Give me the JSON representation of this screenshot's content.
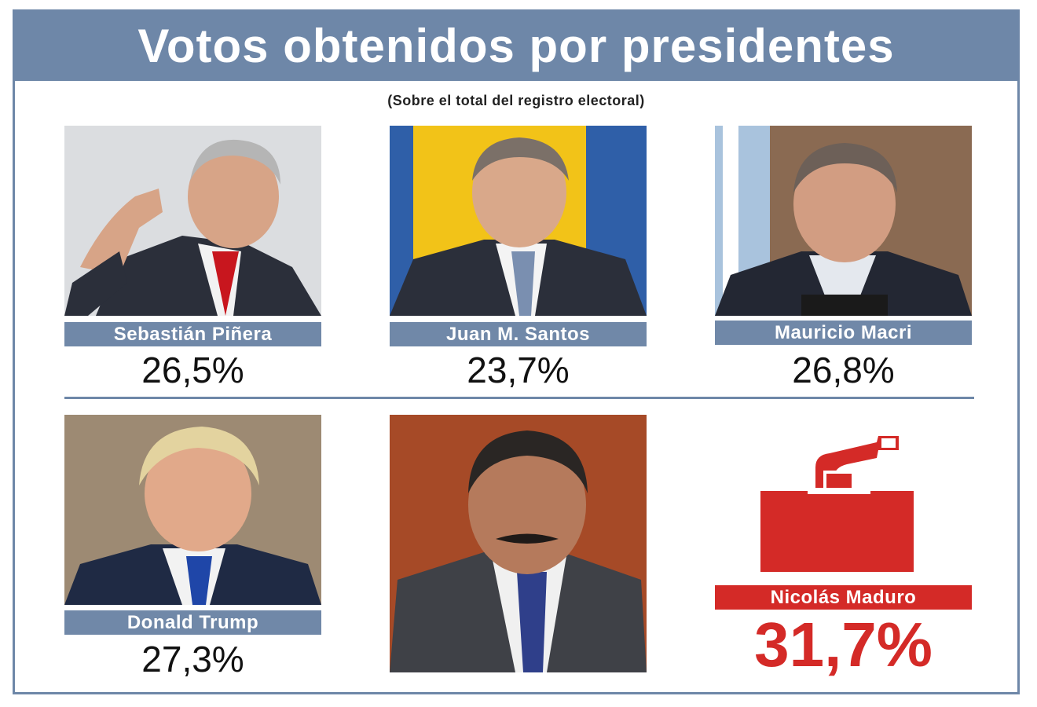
{
  "title": "Votos obtenidos por presidentes",
  "subtitle": "(Sobre el total del registro electoral)",
  "colors": {
    "header": "#6e87a8",
    "accent": "#d42a27",
    "namebar": "#7088a8"
  },
  "icons": {
    "ballot": "ballot-box-icon"
  },
  "chart_data": {
    "type": "table",
    "title": "Votos obtenidos por presidentes",
    "subtitle": "(Sobre el total del registro electoral)",
    "unit": "%",
    "categories": [
      "Sebastián Piñera",
      "Juan M. Santos",
      "Mauricio Macri",
      "Donald Trump",
      "Nicolás Maduro"
    ],
    "values": [
      26.5,
      23.7,
      26.8,
      27.3,
      31.7
    ],
    "labels": [
      "26,5%",
      "23,7%",
      "26,8%",
      "27,3%",
      "31,7%"
    ],
    "highlight": "Nicolás Maduro"
  },
  "presidents": [
    {
      "name": "Sebastián Piñera",
      "value_label": "26,5%"
    },
    {
      "name": "Juan M. Santos",
      "value_label": "23,7%"
    },
    {
      "name": "Mauricio Macri",
      "value_label": "26,8%"
    },
    {
      "name": "Donald Trump",
      "value_label": "27,3%"
    },
    {
      "name": "Nicolás Maduro",
      "value_label": "31,7%"
    }
  ]
}
